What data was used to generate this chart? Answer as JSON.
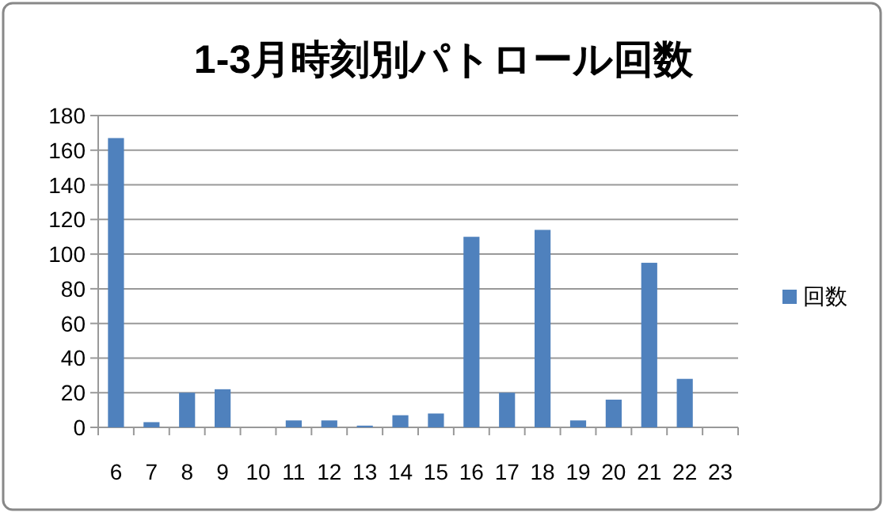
{
  "chart_data": {
    "type": "bar",
    "title": "1-3月時刻別パトロール回数",
    "categories": [
      "6",
      "7",
      "8",
      "9",
      "10",
      "11",
      "12",
      "13",
      "14",
      "15",
      "16",
      "17",
      "18",
      "19",
      "20",
      "21",
      "22",
      "23"
    ],
    "series": [
      {
        "name": "回数",
        "color": "#4f81bd",
        "values": [
          167,
          3,
          20,
          22,
          0,
          4,
          4,
          1,
          7,
          8,
          110,
          20,
          114,
          4,
          16,
          95,
          28,
          0
        ]
      }
    ],
    "ylim": [
      0,
      180
    ],
    "yticks": [
      0,
      20,
      40,
      60,
      80,
      100,
      120,
      140,
      160,
      180
    ],
    "grid": "y",
    "legend": "right"
  }
}
